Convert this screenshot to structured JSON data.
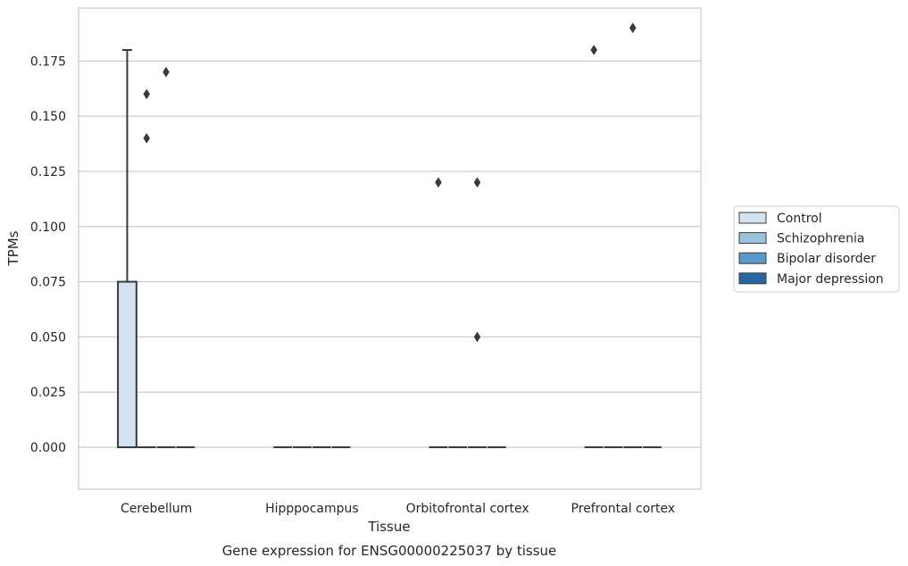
{
  "chart_data": {
    "type": "box",
    "xlabel": "Tissue",
    "ylabel": "TPMs",
    "caption": "Gene expression for ENSG00000225037 by tissue",
    "categories": [
      "Cerebellum",
      "Hipppocampus",
      "Orbitofrontal cortex",
      "Prefrontal cortex"
    ],
    "ylim": [
      -0.019,
      0.199
    ],
    "yticks": [
      "0.000",
      "0.025",
      "0.050",
      "0.075",
      "0.100",
      "0.125",
      "0.150",
      "0.175"
    ],
    "grid": "horizontal",
    "legend_position": "right",
    "series": [
      {
        "name": "Control",
        "color": "#d4e3f1",
        "boxes": [
          {
            "q1": 0,
            "median": 0,
            "q3": 0.075,
            "whislo": 0,
            "whishi": 0.18,
            "fliers": []
          },
          {
            "q1": 0,
            "median": 0,
            "q3": 0,
            "whislo": 0,
            "whishi": 0,
            "fliers": []
          },
          {
            "q1": 0,
            "median": 0,
            "q3": 0,
            "whislo": 0,
            "whishi": 0,
            "fliers": [
              0.12
            ]
          },
          {
            "q1": 0,
            "median": 0,
            "q3": 0,
            "whislo": 0,
            "whishi": 0,
            "fliers": [
              0.18
            ]
          }
        ]
      },
      {
        "name": "Schizophrenia",
        "color": "#9cc3de",
        "boxes": [
          {
            "q1": 0,
            "median": 0,
            "q3": 0,
            "whislo": 0,
            "whishi": 0,
            "fliers": [
              0.14,
              0.16
            ]
          },
          {
            "q1": 0,
            "median": 0,
            "q3": 0,
            "whislo": 0,
            "whishi": 0,
            "fliers": []
          },
          {
            "q1": 0,
            "median": 0,
            "q3": 0,
            "whislo": 0,
            "whishi": 0,
            "fliers": []
          },
          {
            "q1": 0,
            "median": 0,
            "q3": 0,
            "whislo": 0,
            "whishi": 0,
            "fliers": []
          }
        ]
      },
      {
        "name": "Bipolar disorder",
        "color": "#5a9ac8",
        "boxes": [
          {
            "q1": 0,
            "median": 0,
            "q3": 0,
            "whislo": 0,
            "whishi": 0,
            "fliers": [
              0.17
            ]
          },
          {
            "q1": 0,
            "median": 0,
            "q3": 0,
            "whislo": 0,
            "whishi": 0,
            "fliers": []
          },
          {
            "q1": 0,
            "median": 0,
            "q3": 0,
            "whislo": 0,
            "whishi": 0,
            "fliers": [
              0.05,
              0.12
            ]
          },
          {
            "q1": 0,
            "median": 0,
            "q3": 0,
            "whislo": 0,
            "whishi": 0,
            "fliers": [
              0.19
            ]
          }
        ]
      },
      {
        "name": "Major depression",
        "color": "#2767a6",
        "boxes": [
          {
            "q1": 0,
            "median": 0,
            "q3": 0,
            "whislo": 0,
            "whishi": 0,
            "fliers": []
          },
          {
            "q1": 0,
            "median": 0,
            "q3": 0,
            "whislo": 0,
            "whishi": 0,
            "fliers": []
          },
          {
            "q1": 0,
            "median": 0,
            "q3": 0,
            "whislo": 0,
            "whishi": 0,
            "fliers": []
          },
          {
            "q1": 0,
            "median": 0,
            "q3": 0,
            "whislo": 0,
            "whishi": 0,
            "fliers": []
          }
        ]
      }
    ]
  }
}
